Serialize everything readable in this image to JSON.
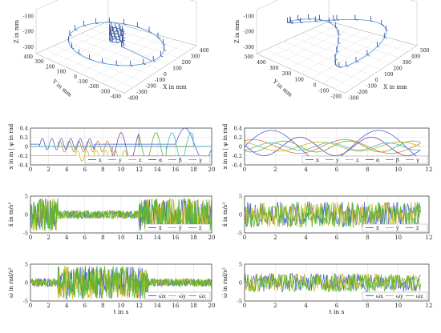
{
  "colors": {
    "s1": "#4a63d6",
    "s2": "#e07a34",
    "s3": "#c8b81e",
    "s4": "#7a3fa3",
    "s5": "#59b533",
    "s6": "#46b4d0",
    "traj": "#5aa0d8",
    "frame": "#2a3b8f",
    "grid": "#dcdcdc",
    "axis": "#333333"
  },
  "chart_data": [
    {
      "id": "p3d_left",
      "type": "scatter",
      "xlabel": "X in mm",
      "ylabel": "Y in mm",
      "zlabel": "Z in mm",
      "x_ticks": [
        "-400",
        "-300",
        "-200",
        "-100",
        "0",
        "100",
        "200",
        "300",
        "400"
      ],
      "y_ticks": [
        "-400",
        "-300",
        "-200",
        "-100",
        "0",
        "100",
        "200",
        "300",
        "400"
      ],
      "z_ticks": [
        "-300",
        "-200",
        "-100"
      ],
      "xlim": [
        -400,
        400
      ],
      "ylim": [
        -400,
        400
      ],
      "zlim": [
        -300,
        -100
      ],
      "description_curve": "ellipse with small spiral near centre",
      "curve": {
        "kind": "ellipse",
        "rx": 350,
        "ry": 380,
        "z": -250
      }
    },
    {
      "id": "p3d_right",
      "type": "scatter",
      "xlabel": "X in mm",
      "ylabel": "Y in mm",
      "zlabel": "Z in mm",
      "x_ticks": [
        "-300",
        "-200",
        "-100",
        "0",
        "100",
        "200",
        "300",
        "400",
        "500"
      ],
      "y_ticks": [
        "-200",
        "-100",
        "0",
        "100",
        "200",
        "300",
        "400",
        "500"
      ],
      "z_ticks": [
        "-300",
        "-200",
        "-100"
      ],
      "xlim": [
        -300,
        500
      ],
      "ylim": [
        -200,
        500
      ],
      "zlim": [
        -300,
        -100
      ],
      "curve": {
        "kind": "figure8",
        "a": 350,
        "z": -200
      }
    },
    {
      "id": "pos_left",
      "type": "line",
      "ylabel": "x in m | φ in rad",
      "xlim": [
        0,
        20
      ],
      "ylim": [
        -0.4,
        0.4
      ],
      "x_ticks": [
        0,
        2,
        4,
        6,
        8,
        10,
        12,
        14,
        16,
        18,
        20
      ],
      "y_ticks": [
        -0.4,
        -0.2,
        0,
        0.2,
        0.4
      ],
      "legend": [
        "x",
        "y",
        "z",
        "α",
        "β",
        "γ"
      ],
      "legend_position": "bottom-right"
    },
    {
      "id": "pos_right",
      "type": "line",
      "ylabel": "x in m | φ in rad",
      "xlim": [
        0,
        12
      ],
      "ylim": [
        -0.4,
        0.4
      ],
      "x_ticks": [
        0,
        2,
        4,
        6,
        8,
        10,
        12
      ],
      "y_ticks": [
        -0.4,
        -0.2,
        0,
        0.2,
        0.4
      ],
      "legend": [
        "x",
        "y",
        "z",
        "α",
        "β",
        "γ"
      ],
      "legend_position": "bottom-right"
    },
    {
      "id": "acc_left",
      "type": "line",
      "ylabel": "ẍ in m/s²",
      "xlim": [
        0,
        20
      ],
      "ylim": [
        -5,
        5
      ],
      "x_ticks": [
        0,
        2,
        4,
        6,
        8,
        10,
        12,
        14,
        16,
        18,
        20
      ],
      "y_ticks": [
        -5,
        0,
        5
      ],
      "legend": [
        "ẍ",
        "ÿ",
        "z̈"
      ],
      "legend_position": "bottom-right"
    },
    {
      "id": "acc_right",
      "type": "line",
      "ylabel": "ẍ in m/s²",
      "xlim": [
        0,
        12
      ],
      "ylim": [
        -5,
        5
      ],
      "x_ticks": [
        0,
        2,
        4,
        6,
        8,
        10,
        12
      ],
      "y_ticks": [
        -5,
        0,
        5
      ],
      "legend": [
        "ẍ",
        "ÿ",
        "z̈"
      ],
      "legend_position": "bottom-right"
    },
    {
      "id": "ang_left",
      "type": "line",
      "ylabel": "ω̇ in rad/s²",
      "xlabel": "t in s",
      "xlim": [
        0,
        20
      ],
      "ylim": [
        -5,
        5
      ],
      "x_ticks": [
        0,
        2,
        4,
        6,
        8,
        10,
        12,
        14,
        16,
        18,
        20
      ],
      "y_ticks": [
        -5,
        0,
        5
      ],
      "legend": [
        "ω̇x",
        "ω̇y",
        "ω̇z"
      ],
      "legend_position": "bottom-right"
    },
    {
      "id": "ang_right",
      "type": "line",
      "ylabel": "ω̇ in rad/s²",
      "xlabel": "t in s",
      "xlim": [
        0,
        12
      ],
      "ylim": [
        -5,
        5
      ],
      "x_ticks": [
        0,
        2,
        4,
        6,
        8,
        10,
        12
      ],
      "y_ticks": [
        -5,
        0,
        5
      ],
      "legend": [
        "ω̇x",
        "ω̇y",
        "ω̇z"
      ],
      "legend_position": "bottom-right"
    }
  ]
}
